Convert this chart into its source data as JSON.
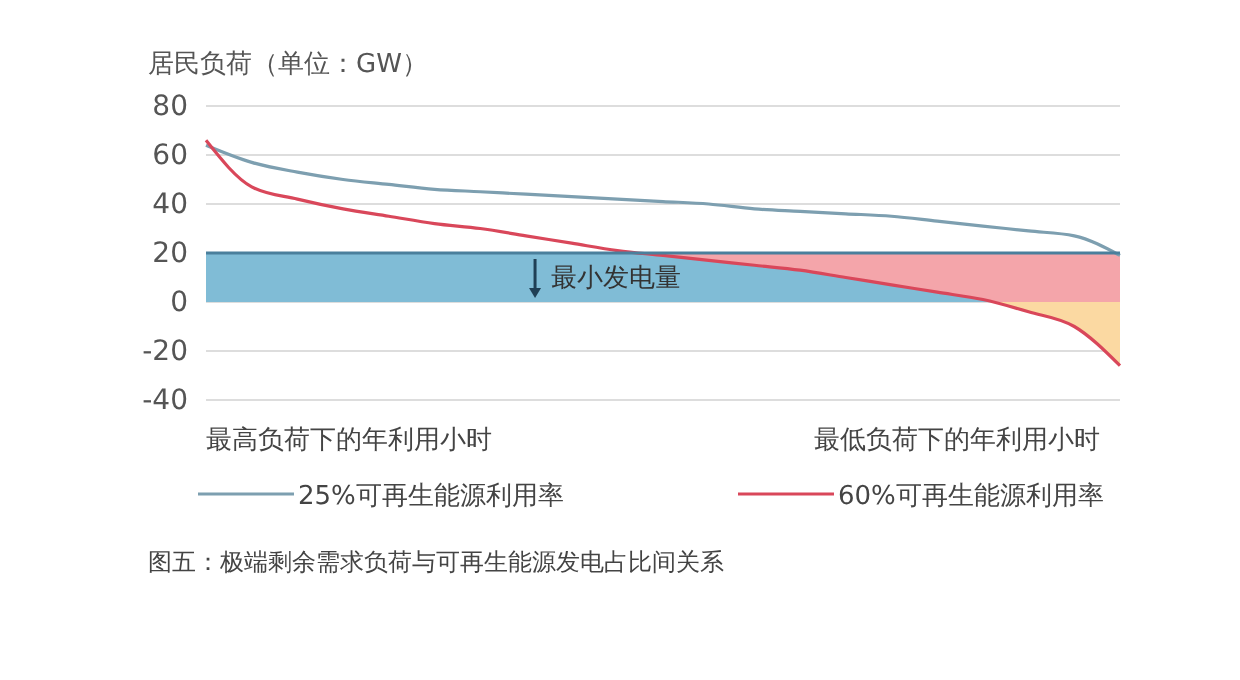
{
  "chart_data": {
    "type": "line",
    "ylabel": "居民负荷（单位：GW）",
    "categories": [
      null,
      null,
      null,
      null,
      null,
      null,
      null,
      null,
      null,
      null,
      null,
      null,
      null,
      null,
      null,
      null,
      null,
      null,
      null,
      null,
      null
    ],
    "series": [
      {
        "type": "area",
        "color": "#f4a5aa",
        "values": [
          null,
          null,
          null,
          null,
          null,
          null,
          null,
          null,
          null,
          20,
          20,
          20,
          20,
          20,
          20,
          20,
          20,
          20,
          20,
          20,
          20
        ]
      },
      {
        "type": "area",
        "color": "#fbd9a2",
        "values": [
          null,
          null,
          null,
          null,
          null,
          null,
          null,
          null,
          null,
          null,
          null,
          null,
          null,
          null,
          null,
          null,
          null,
          1,
          -4,
          -10,
          -26
        ]
      },
      {
        "name": "25%可再生能源利用率",
        "color": "#7d9fb0",
        "values": [
          64,
          57,
          53,
          50,
          48,
          46,
          45,
          44,
          43,
          42,
          41,
          40,
          38,
          37,
          36,
          35,
          33,
          31,
          29,
          27,
          19
        ]
      },
      {
        "name": "60%可再生能源利用率",
        "color": "#d9475a",
        "values": [
          66,
          47,
          42,
          38,
          35,
          32,
          30,
          27,
          24,
          21,
          19,
          17,
          15,
          13,
          10,
          7,
          4,
          1,
          -4,
          -10,
          -26
        ]
      }
    ],
    "ylim": [
      -40,
      80
    ],
    "yticks": [
      -40,
      -20,
      0,
      20,
      40,
      60,
      80
    ],
    "ref_lines": [
      {
        "axis": "y",
        "value": 20,
        "color": "#4a7f9c"
      }
    ],
    "bands": [
      {
        "axis": "y",
        "from": 0,
        "to": 20,
        "label": "最小发电量",
        "color": "#80bcd6"
      }
    ],
    "annotations": [
      "最高负荷下的年利用小时",
      "最低负荷下的年利用小时",
      "图五：极端剩余需求负荷与可再生能源发电占比间关系"
    ],
    "grid": "y",
    "legend": "bottom",
    "line_style": "solid",
    "marker": "none",
    "tick_labels": "y"
  }
}
